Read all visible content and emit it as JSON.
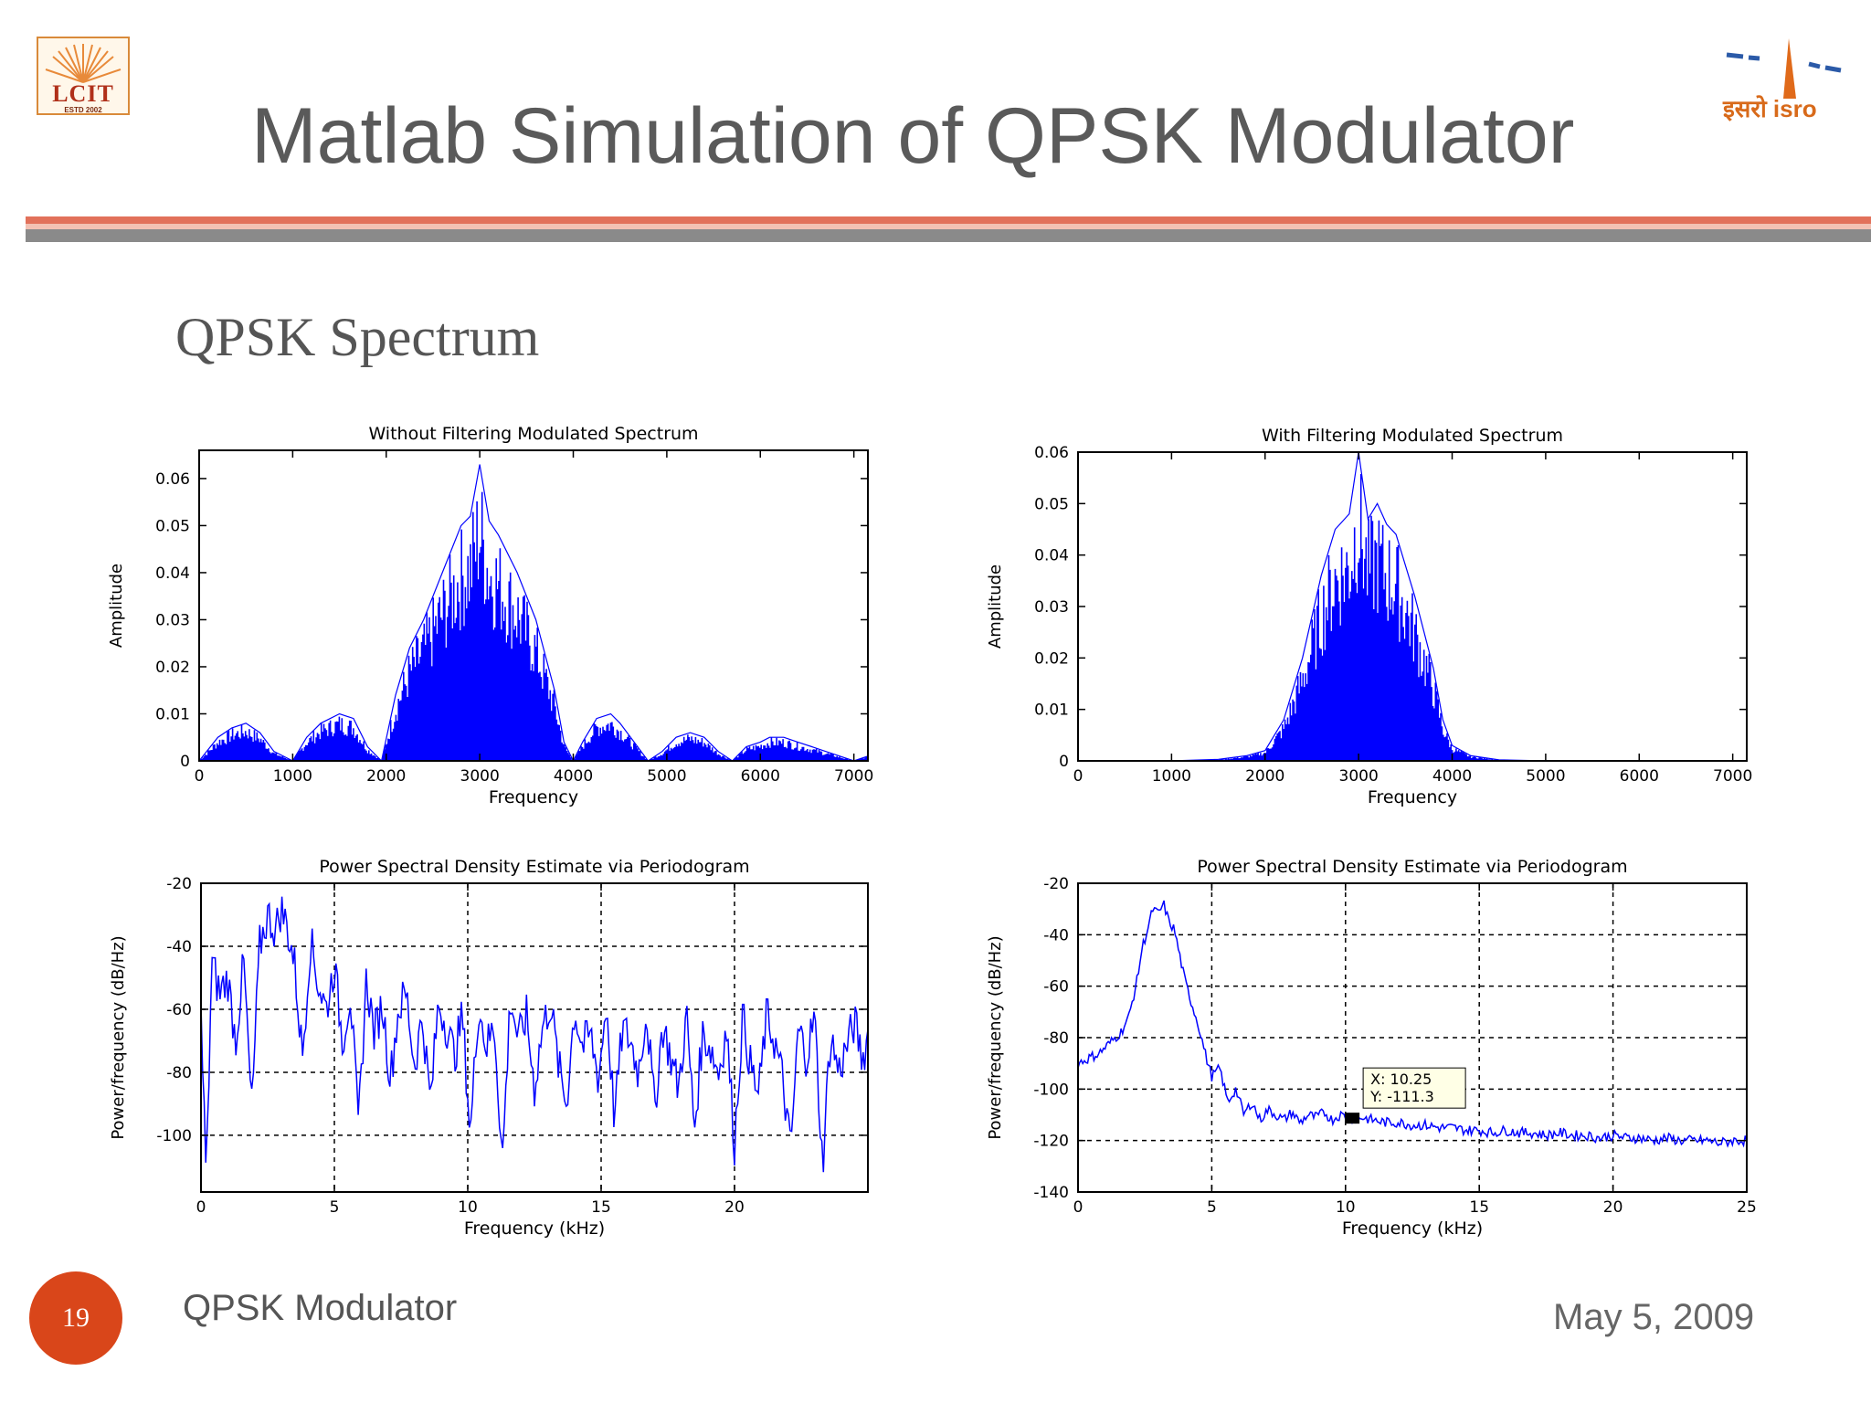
{
  "slide": {
    "title": "Matlab Simulation of QPSK Modulator",
    "subtitle": "QPSK Spectrum",
    "page_number": "19",
    "footer_left": "QPSK Modulator",
    "footer_right": "May 5, 2009",
    "logo_left_text": "LCIT",
    "logo_left_estd": "ESTD  2002",
    "logo_right_text": "इसरो isro",
    "colors": {
      "accent": "#e2715a",
      "badge": "#d9461a",
      "trace": "#0000ff"
    }
  },
  "chart_data": [
    {
      "id": "tl",
      "type": "line",
      "title": "Without Filtering Modulated Spectrum",
      "xlabel": "Frequency",
      "ylabel": "Amplitude",
      "xlim": [
        0,
        7150
      ],
      "ylim": [
        0,
        0.066
      ],
      "xticks": [
        0,
        1000,
        2000,
        3000,
        4000,
        5000,
        6000,
        7000
      ],
      "yticks": [
        0,
        0.01,
        0.02,
        0.03,
        0.04,
        0.05,
        0.06
      ],
      "yticklabels": [
        "0",
        "0.01",
        "0.02",
        "0.03",
        "0.04",
        "0.05",
        "0.06"
      ],
      "grid": false,
      "series": [
        {
          "x": [
            0,
            200,
            350,
            500,
            650,
            800,
            1000,
            1150,
            1300,
            1500,
            1650,
            1800,
            1950,
            2100,
            2250,
            2400,
            2600,
            2800,
            2900,
            3000,
            3100,
            3200,
            3400,
            3600,
            3800,
            3900,
            4000,
            4100,
            4250,
            4400,
            4500,
            4650,
            4800,
            4950,
            5100,
            5250,
            5400,
            5550,
            5700,
            5850,
            6000,
            6100,
            6250,
            6400,
            6550,
            6700,
            6850,
            7000,
            7150
          ],
          "values": [
            0,
            0.005,
            0.007,
            0.008,
            0.006,
            0.002,
            0,
            0.005,
            0.008,
            0.01,
            0.009,
            0.003,
            0,
            0.014,
            0.024,
            0.03,
            0.04,
            0.05,
            0.052,
            0.063,
            0.051,
            0.048,
            0.04,
            0.03,
            0.015,
            0.004,
            0,
            0.004,
            0.009,
            0.01,
            0.008,
            0.004,
            0,
            0.002,
            0.005,
            0.006,
            0.005,
            0.002,
            0,
            0.003,
            0.004,
            0.005,
            0.005,
            0.004,
            0.003,
            0.002,
            0.001,
            0,
            0.001
          ]
        }
      ]
    },
    {
      "id": "tr",
      "type": "line",
      "title": "With Filtering Modulated Spectrum",
      "xlabel": "Frequency",
      "ylabel": "Amplitude",
      "xlim": [
        0,
        7150
      ],
      "ylim": [
        0,
        0.06
      ],
      "xticks": [
        0,
        1000,
        2000,
        3000,
        4000,
        5000,
        6000,
        7000
      ],
      "yticks": [
        0,
        0.01,
        0.02,
        0.03,
        0.04,
        0.05,
        0.06
      ],
      "yticklabels": [
        "0",
        "0.01",
        "0.02",
        "0.03",
        "0.04",
        "0.05",
        "0.06"
      ],
      "grid": false,
      "series": [
        {
          "x": [
            0,
            1000,
            1500,
            1800,
            2000,
            2200,
            2400,
            2600,
            2750,
            2900,
            3000,
            3100,
            3200,
            3300,
            3400,
            3600,
            3800,
            3900,
            4000,
            4200,
            4500,
            5000,
            6000,
            7150
          ],
          "values": [
            0,
            0,
            0.0003,
            0.001,
            0.002,
            0.008,
            0.02,
            0.036,
            0.045,
            0.048,
            0.06,
            0.047,
            0.05,
            0.046,
            0.044,
            0.032,
            0.018,
            0.008,
            0.003,
            0.001,
            0.0002,
            0,
            0,
            0
          ]
        }
      ]
    },
    {
      "id": "bl",
      "type": "line",
      "title": "Power Spectral Density Estimate via Periodogram",
      "xlabel": "Frequency (kHz)",
      "ylabel": "Power/frequency (dB/Hz)",
      "xlim": [
        0,
        25
      ],
      "ylim": [
        -118,
        -20
      ],
      "xticks": [
        0,
        5,
        10,
        15,
        20
      ],
      "yticks": [
        -20,
        -40,
        -60,
        -80,
        -100
      ],
      "yticklabels": [
        "-20",
        "-40",
        "-60",
        "-80",
        "-100"
      ],
      "grid": true,
      "series": [
        {
          "x": [
            0,
            0.2,
            0.4,
            0.7,
            1.0,
            1.3,
            1.6,
            1.9,
            2.2,
            2.5,
            2.8,
            3.0,
            3.2,
            3.5,
            3.8,
            4.1,
            4.4,
            4.7,
            5.0,
            5.3,
            5.6,
            5.9,
            6.2,
            6.5,
            6.8,
            7.1,
            7.4,
            7.7,
            8.0,
            8.3,
            8.6,
            8.9,
            9.2,
            9.5,
            9.8,
            10.1,
            10.4,
            10.7,
            11.0,
            11.3,
            11.6,
            11.9,
            12.2,
            12.5,
            12.8,
            13.1,
            13.4,
            13.7,
            14.0,
            14.3,
            14.6,
            14.9,
            15.2,
            15.5,
            15.8,
            16.1,
            16.4,
            16.7,
            17.0,
            17.3,
            17.6,
            17.9,
            18.2,
            18.5,
            18.8,
            19.1,
            19.4,
            19.7,
            20.0,
            20.3,
            20.6,
            20.9,
            21.2,
            21.5,
            21.8,
            22.1,
            22.4,
            22.7,
            23.0,
            23.3,
            23.6,
            23.9,
            24.2,
            24.5,
            24.8,
            25.0
          ],
          "values": [
            -62,
            -115,
            -45,
            -55,
            -50,
            -70,
            -45,
            -92,
            -40,
            -30,
            -35,
            -28,
            -33,
            -45,
            -75,
            -38,
            -52,
            -60,
            -46,
            -70,
            -55,
            -98,
            -50,
            -68,
            -58,
            -82,
            -60,
            -55,
            -78,
            -62,
            -90,
            -58,
            -65,
            -75,
            -62,
            -100,
            -58,
            -72,
            -65,
            -108,
            -56,
            -70,
            -62,
            -85,
            -66,
            -58,
            -78,
            -90,
            -60,
            -72,
            -68,
            -82,
            -58,
            -95,
            -66,
            -70,
            -80,
            -60,
            -92,
            -65,
            -75,
            -85,
            -62,
            -98,
            -68,
            -72,
            -80,
            -66,
            -103,
            -62,
            -78,
            -88,
            -62,
            -70,
            -82,
            -105,
            -66,
            -75,
            -62,
            -110,
            -68,
            -80,
            -72,
            -64,
            -76,
            -68
          ]
        }
      ]
    },
    {
      "id": "br",
      "type": "line",
      "title": "Power Spectral Density Estimate via Periodogram",
      "xlabel": "Frequency (kHz)",
      "ylabel": "Power/frequency (dB/Hz)",
      "xlim": [
        0,
        25
      ],
      "ylim": [
        -140,
        -20
      ],
      "xticks": [
        0,
        5,
        10,
        15,
        20,
        25
      ],
      "yticks": [
        -20,
        -40,
        -60,
        -80,
        -100,
        -120,
        -140
      ],
      "yticklabels": [
        "-20",
        "-40",
        "-60",
        "-80",
        "-100",
        "-120",
        "-140"
      ],
      "grid": true,
      "datatip": {
        "x": 10.25,
        "y": -111.3,
        "text_x": "X: 10.25",
        "text_y": "Y: -111.3"
      },
      "series": [
        {
          "x": [
            0,
            0.4,
            0.8,
            1.2,
            1.6,
            1.9,
            2.2,
            2.4,
            2.6,
            2.8,
            3.0,
            3.2,
            3.4,
            3.6,
            3.8,
            4.0,
            4.2,
            4.5,
            4.8,
            5.0,
            5.3,
            5.6,
            5.9,
            6.2,
            6.5,
            6.8,
            7.1,
            7.4,
            7.7,
            8.0,
            8.3,
            8.6,
            8.9,
            9.2,
            9.5,
            9.8,
            10.25,
            10.6,
            11.0,
            11.5,
            12.0,
            12.5,
            13.0,
            13.5,
            14.0,
            14.5,
            15.0,
            15.5,
            16.0,
            16.5,
            17.0,
            17.5,
            18.0,
            18.5,
            19.0,
            19.5,
            20.0,
            20.5,
            21.0,
            21.5,
            22.0,
            22.5,
            23.0,
            23.5,
            24.0,
            24.5,
            25.0
          ],
          "values": [
            -90,
            -88,
            -86,
            -82,
            -78,
            -72,
            -58,
            -45,
            -38,
            -30,
            -32,
            -28,
            -35,
            -38,
            -48,
            -58,
            -65,
            -75,
            -88,
            -95,
            -92,
            -105,
            -100,
            -110,
            -105,
            -112,
            -108,
            -110,
            -112,
            -109,
            -113,
            -110,
            -111,
            -109,
            -112,
            -110,
            -111.3,
            -111,
            -112,
            -113,
            -113,
            -114,
            -114,
            -115,
            -115,
            -116,
            -116,
            -117,
            -116,
            -117,
            -117,
            -118,
            -117,
            -118,
            -118,
            -119,
            -118,
            -119,
            -119,
            -120,
            -119,
            -120,
            -120,
            -120,
            -121,
            -120,
            -120
          ]
        }
      ]
    }
  ]
}
